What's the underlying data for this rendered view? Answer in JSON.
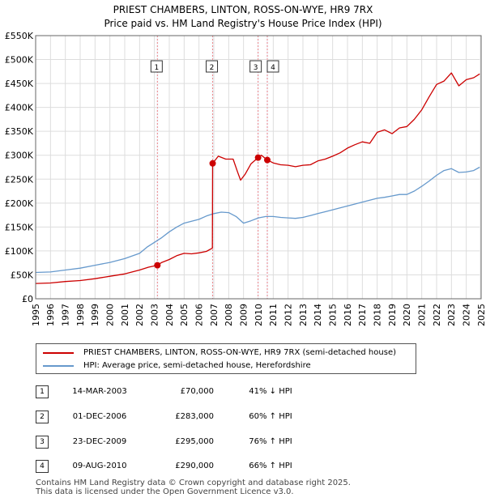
{
  "title": {
    "line1": "PRIEST CHAMBERS, LINTON, ROSS-ON-WYE, HR9 7RX",
    "line2": "Price paid vs. HM Land Registry's House Price Index (HPI)"
  },
  "legend": {
    "red_label": "PRIEST CHAMBERS, LINTON, ROSS-ON-WYE, HR9 7RX (semi-detached house)",
    "blue_label": "HPI: Average price, semi-detached house, Herefordshire"
  },
  "sales": [
    {
      "num": "1",
      "date": "14-MAR-2003",
      "price": "£70,000",
      "hpi": "41% ↓ HPI"
    },
    {
      "num": "2",
      "date": "01-DEC-2006",
      "price": "£283,000",
      "hpi": "60% ↑ HPI"
    },
    {
      "num": "3",
      "date": "23-DEC-2009",
      "price": "£295,000",
      "hpi": "76% ↑ HPI"
    },
    {
      "num": "4",
      "date": "09-AUG-2010",
      "price": "£290,000",
      "hpi": "66% ↑ HPI"
    }
  ],
  "footer": {
    "line1": "Contains HM Land Registry data © Crown copyright and database right 2025.",
    "line2": "This data is licensed under the Open Government Licence v3.0."
  },
  "colors": {
    "red": "#cc0000",
    "blue": "#6699cc",
    "grid": "#dddddd",
    "marker_line": "#ee8888"
  },
  "chart_data": {
    "type": "line",
    "title": "PRIEST CHAMBERS, LINTON, ROSS-ON-WYE, HR9 7RX",
    "subtitle": "Price paid vs. HM Land Registry's House Price Index (HPI)",
    "xlabel": "",
    "ylabel": "",
    "xlim": [
      1995,
      2025
    ],
    "ylim": [
      0,
      550000
    ],
    "y_ticks": [
      0,
      50000,
      100000,
      150000,
      200000,
      250000,
      300000,
      350000,
      400000,
      450000,
      500000,
      550000
    ],
    "y_tick_labels": [
      "£0",
      "£50K",
      "£100K",
      "£150K",
      "£200K",
      "£250K",
      "£300K",
      "£350K",
      "£400K",
      "£450K",
      "£500K",
      "£550K"
    ],
    "x_ticks": [
      1995,
      1996,
      1997,
      1998,
      1999,
      2000,
      2001,
      2002,
      2003,
      2004,
      2005,
      2006,
      2007,
      2008,
      2009,
      2010,
      2011,
      2012,
      2013,
      2014,
      2015,
      2016,
      2017,
      2018,
      2019,
      2020,
      2021,
      2022,
      2023,
      2024,
      2025
    ],
    "grid": true,
    "legend_position": "below",
    "series": [
      {
        "name": "PRIEST CHAMBERS, LINTON, ROSS-ON-WYE, HR9 7RX (semi-detached house)",
        "color": "#cc0000",
        "x": [
          1995.0,
          1996.0,
          1997.0,
          1998.0,
          1999.0,
          2000.0,
          2001.0,
          2002.0,
          2002.6,
          2003.2,
          2003.5,
          2004.0,
          2004.5,
          2005.0,
          2005.5,
          2006.0,
          2006.5,
          2006.9,
          2006.92,
          2007.3,
          2007.8,
          2008.3,
          2008.6,
          2008.8,
          2009.1,
          2009.5,
          2009.98,
          2010.2,
          2010.6,
          2011.0,
          2011.5,
          2012.0,
          2012.5,
          2013.0,
          2013.5,
          2014.0,
          2014.5,
          2015.0,
          2015.5,
          2016.0,
          2016.5,
          2017.0,
          2017.5,
          2018.0,
          2018.5,
          2019.0,
          2019.5,
          2020.0,
          2020.5,
          2021.0,
          2021.5,
          2022.0,
          2022.5,
          2023.0,
          2023.5,
          2024.0,
          2024.5,
          2024.9
        ],
        "values": [
          32000,
          33000,
          36000,
          38000,
          42000,
          47000,
          52000,
          60000,
          66000,
          70000,
          76000,
          82000,
          90000,
          95000,
          94000,
          96000,
          99000,
          106000,
          283000,
          298000,
          292000,
          292000,
          265000,
          248000,
          260000,
          282000,
          295000,
          300000,
          290000,
          284000,
          280000,
          279000,
          276000,
          279000,
          280000,
          288000,
          292000,
          298000,
          305000,
          315000,
          322000,
          328000,
          325000,
          348000,
          353000,
          345000,
          357000,
          360000,
          375000,
          395000,
          422000,
          448000,
          455000,
          472000,
          445000,
          458000,
          462000,
          470000
        ]
      },
      {
        "name": "HPI: Average price, semi-detached house, Herefordshire",
        "color": "#6699cc",
        "x": [
          1995.0,
          1996.0,
          1997.0,
          1998.0,
          1999.0,
          2000.0,
          2001.0,
          2002.0,
          2002.5,
          2003.0,
          2003.5,
          2004.0,
          2004.5,
          2005.0,
          2005.5,
          2006.0,
          2006.5,
          2007.0,
          2007.5,
          2008.0,
          2008.5,
          2009.0,
          2009.5,
          2010.0,
          2010.5,
          2011.0,
          2011.5,
          2012.0,
          2012.5,
          2013.0,
          2013.5,
          2014.0,
          2014.5,
          2015.0,
          2015.5,
          2016.0,
          2016.5,
          2017.0,
          2017.5,
          2018.0,
          2018.5,
          2019.0,
          2019.5,
          2020.0,
          2020.5,
          2021.0,
          2021.5,
          2022.0,
          2022.5,
          2023.0,
          2023.5,
          2024.0,
          2024.5,
          2024.9
        ],
        "values": [
          55000,
          56000,
          60000,
          64000,
          70000,
          76000,
          84000,
          95000,
          108000,
          118000,
          128000,
          140000,
          150000,
          158000,
          162000,
          166000,
          173000,
          178000,
          181000,
          180000,
          172000,
          158000,
          163000,
          169000,
          172000,
          172000,
          170000,
          169000,
          168000,
          170000,
          174000,
          178000,
          182000,
          186000,
          190000,
          194000,
          198000,
          202000,
          206000,
          210000,
          212000,
          215000,
          218000,
          218000,
          225000,
          235000,
          246000,
          258000,
          268000,
          272000,
          264000,
          265000,
          268000,
          275000
        ]
      }
    ],
    "markers": [
      {
        "label": "1",
        "x": 2003.2,
        "value": 70000
      },
      {
        "label": "2",
        "x": 2006.92,
        "value": 283000
      },
      {
        "label": "3",
        "x": 2009.98,
        "value": 295000
      },
      {
        "label": "4",
        "x": 2010.6,
        "value": 290000
      }
    ]
  }
}
